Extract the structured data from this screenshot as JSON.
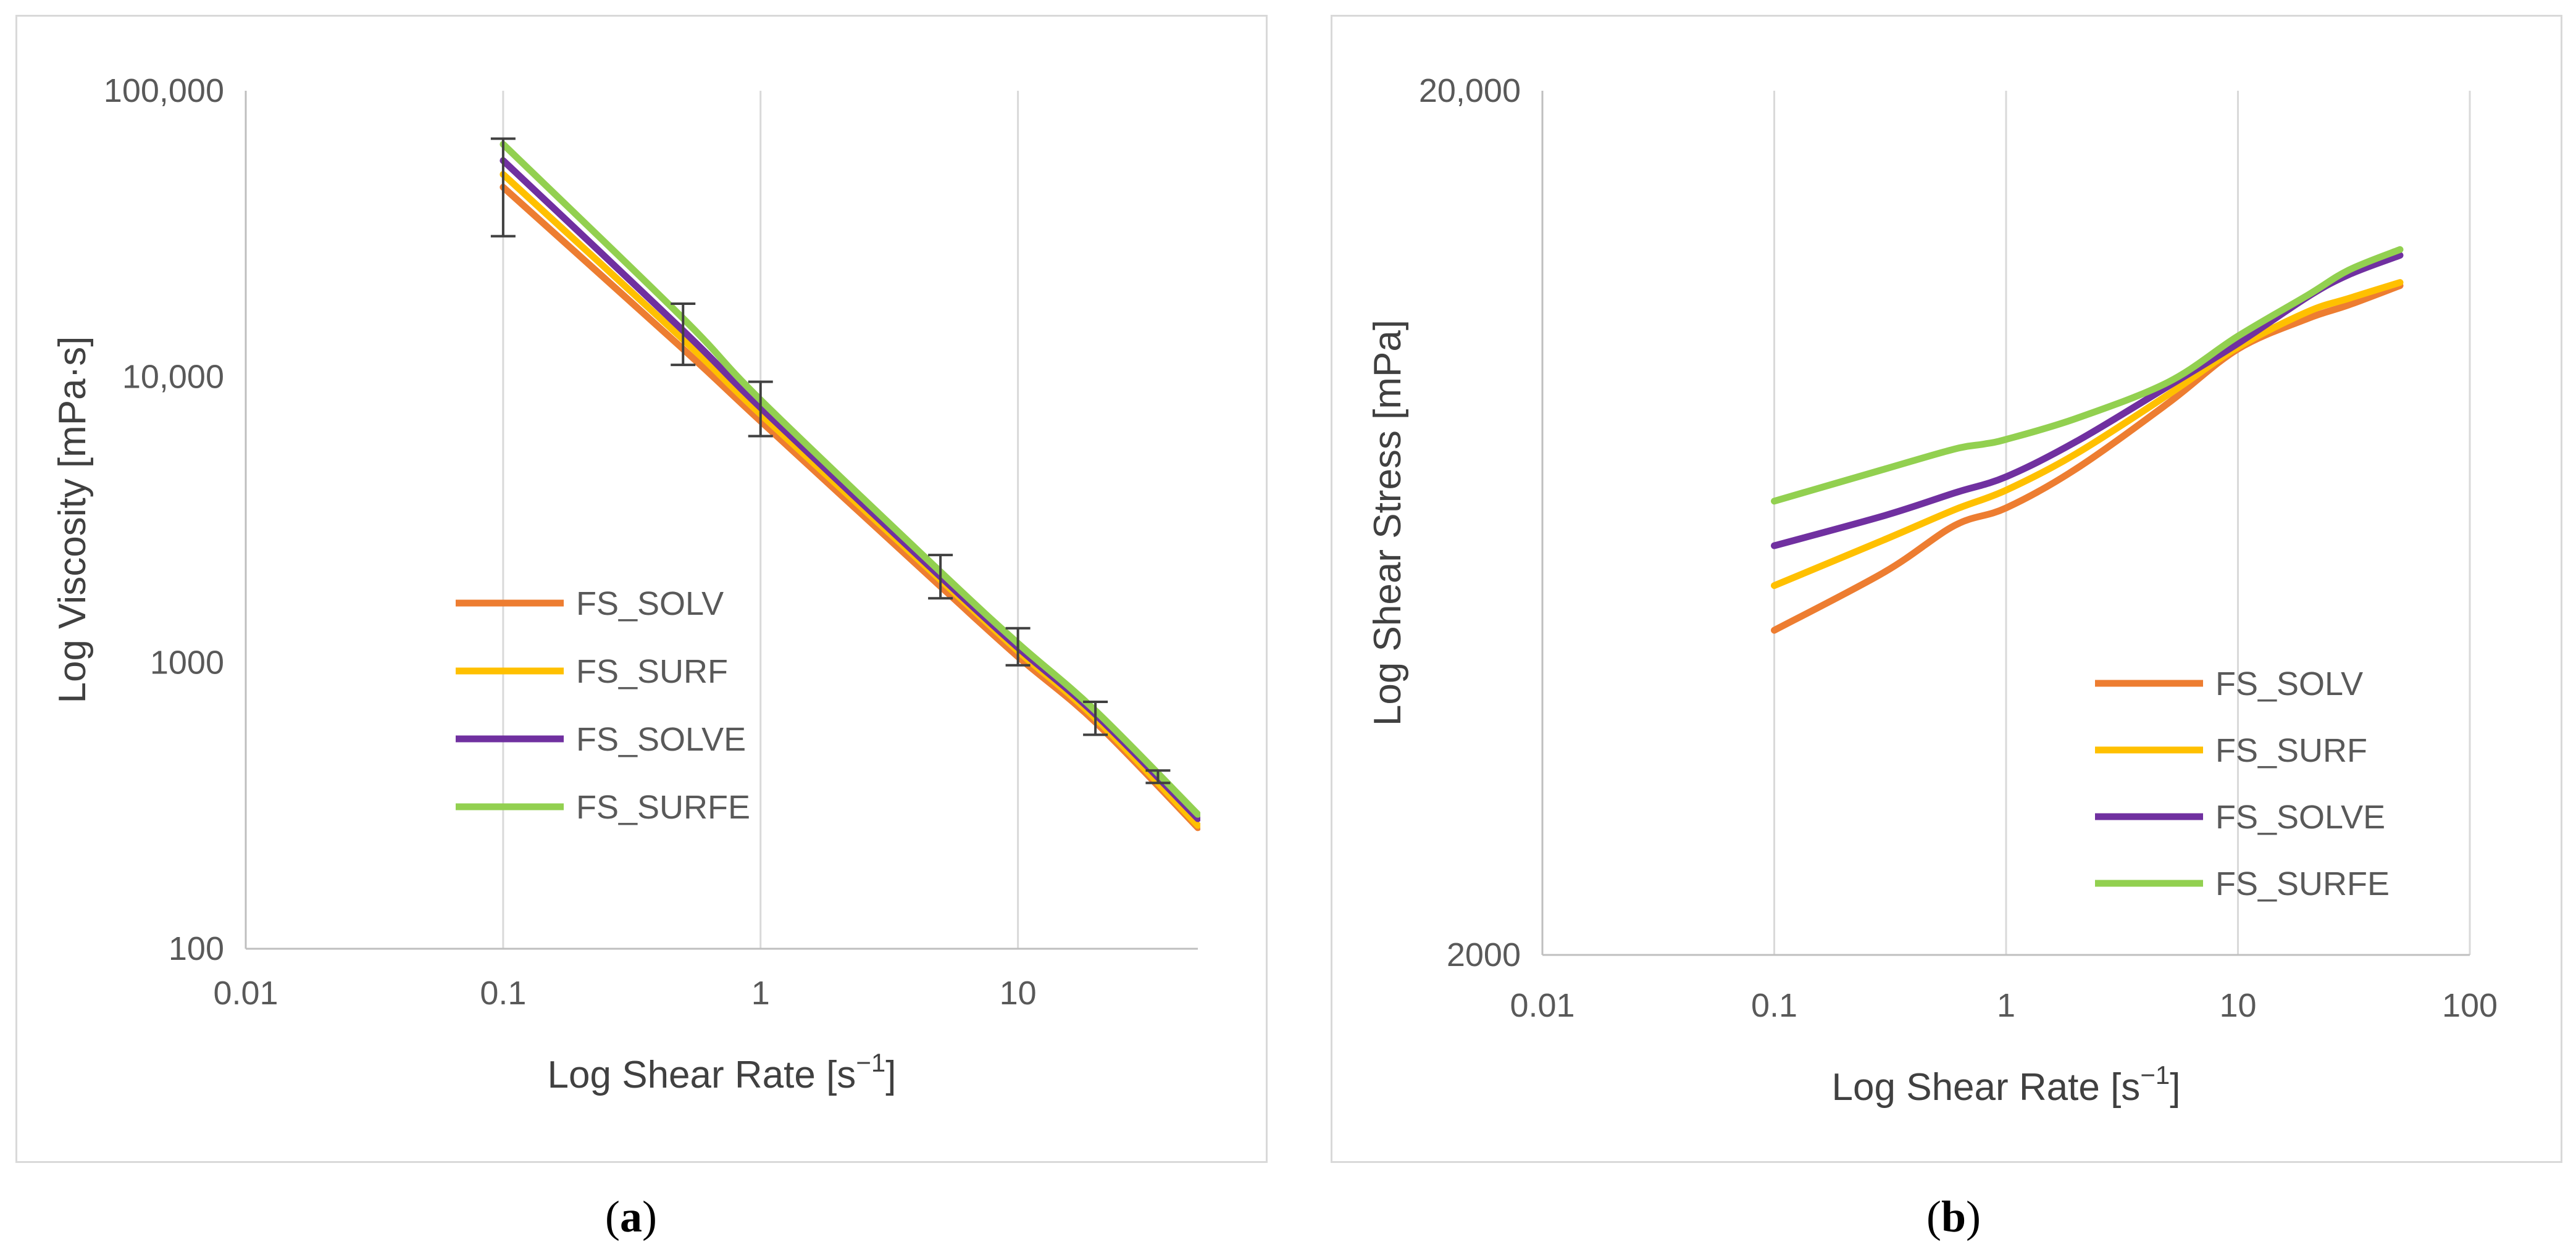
{
  "captions": {
    "a": "a",
    "b": "b"
  },
  "chart_data": [
    {
      "type": "line",
      "panel": "a",
      "xscale": "log",
      "yscale": "log",
      "xlim": [
        0.01,
        50
      ],
      "ylim": [
        100,
        100000
      ],
      "xticks": [
        {
          "value": 0.01,
          "label": "0.01"
        },
        {
          "value": 0.1,
          "label": "0.1"
        },
        {
          "value": 1,
          "label": "1"
        },
        {
          "value": 10,
          "label": "10"
        }
      ],
      "yticks": [
        {
          "value": 100,
          "label": "100"
        },
        {
          "value": 1000,
          "label": "1000"
        },
        {
          "value": 10000,
          "label": "10,000"
        },
        {
          "value": 100000,
          "label": "100,000"
        }
      ],
      "xlabel": "Log Shear Rate [s",
      "xlabel_sup": "−1",
      "xlabel_end": "]",
      "ylabel": "Log Viscosity [mPa·s]",
      "grid": "vertical",
      "legend_position": "center-left",
      "series": [
        {
          "name": "FS_SOLV",
          "color": "#ED7D31",
          "x": [
            0.1,
            0.5,
            1,
            5,
            10,
            20,
            50
          ],
          "y": [
            46000,
            12500,
            7000,
            1850,
            1050,
            620,
            265
          ]
        },
        {
          "name": "FS_SURF",
          "color": "#FFC000",
          "x": [
            0.1,
            0.5,
            1,
            5,
            10,
            20,
            50
          ],
          "y": [
            51000,
            13500,
            7400,
            1950,
            1100,
            640,
            270
          ]
        },
        {
          "name": "FS_SOLVE",
          "color": "#7030A0",
          "x": [
            0.1,
            0.5,
            1,
            5,
            10,
            20,
            50
          ],
          "y": [
            57000,
            14500,
            7800,
            2000,
            1130,
            660,
            285
          ]
        },
        {
          "name": "FS_SURFE",
          "color": "#92D050",
          "x": [
            0.1,
            0.5,
            1,
            5,
            10,
            20,
            50
          ],
          "y": [
            65000,
            16000,
            8300,
            2080,
            1170,
            680,
            295
          ]
        }
      ],
      "error_bars": [
        {
          "x": 0.1,
          "low": 31000,
          "high": 68000
        },
        {
          "x": 0.5,
          "low": 11000,
          "high": 18000
        },
        {
          "x": 1,
          "low": 6200,
          "high": 9600
        },
        {
          "x": 5,
          "low": 1680,
          "high": 2380
        },
        {
          "x": 10,
          "low": 980,
          "high": 1320
        },
        {
          "x": 20,
          "low": 560,
          "high": 730
        },
        {
          "x": 35,
          "low": 380,
          "high": 420
        }
      ]
    },
    {
      "type": "line",
      "panel": "b",
      "xscale": "log",
      "yscale": "log",
      "xlim": [
        0.01,
        100
      ],
      "ylim": [
        2000,
        20000
      ],
      "xticks": [
        {
          "value": 0.01,
          "label": "0.01"
        },
        {
          "value": 0.1,
          "label": "0.1"
        },
        {
          "value": 1,
          "label": "1"
        },
        {
          "value": 10,
          "label": "10"
        },
        {
          "value": 100,
          "label": "100"
        }
      ],
      "yticks": [
        {
          "value": 2000,
          "label": "2000"
        },
        {
          "value": 20000,
          "label": "20,000"
        }
      ],
      "xlabel": "Log Shear Rate [s",
      "xlabel_sup": "−1",
      "xlabel_end": "]",
      "ylabel": "Log Shear Stress [mPa]",
      "grid": "vertical",
      "legend_position": "bottom-right",
      "series": [
        {
          "name": "FS_SOLV",
          "color": "#ED7D31",
          "x": [
            0.1,
            0.3,
            0.6,
            1,
            2,
            5,
            10,
            20,
            30,
            50
          ],
          "y": [
            4750,
            5550,
            6280,
            6580,
            7300,
            8700,
            10050,
            10900,
            11300,
            11900
          ]
        },
        {
          "name": "FS_SURF",
          "color": "#FFC000",
          "x": [
            0.1,
            0.3,
            0.6,
            1,
            2,
            5,
            10,
            20,
            30,
            50
          ],
          "y": [
            5350,
            6050,
            6550,
            6900,
            7600,
            8900,
            10100,
            11100,
            11500,
            12000
          ]
        },
        {
          "name": "FS_SOLVE",
          "color": "#7030A0",
          "x": [
            0.1,
            0.3,
            0.6,
            1,
            2,
            5,
            10,
            20,
            30,
            50
          ],
          "y": [
            5950,
            6450,
            6850,
            7150,
            7850,
            9100,
            10200,
            11550,
            12250,
            12900
          ]
        },
        {
          "name": "FS_SURFE",
          "color": "#92D050",
          "x": [
            0.1,
            0.3,
            0.6,
            0.8,
            1,
            2,
            5,
            10,
            20,
            30,
            50
          ],
          "y": [
            6700,
            7300,
            7700,
            7800,
            7900,
            8350,
            9200,
            10400,
            11600,
            12400,
            13100
          ]
        }
      ]
    }
  ]
}
